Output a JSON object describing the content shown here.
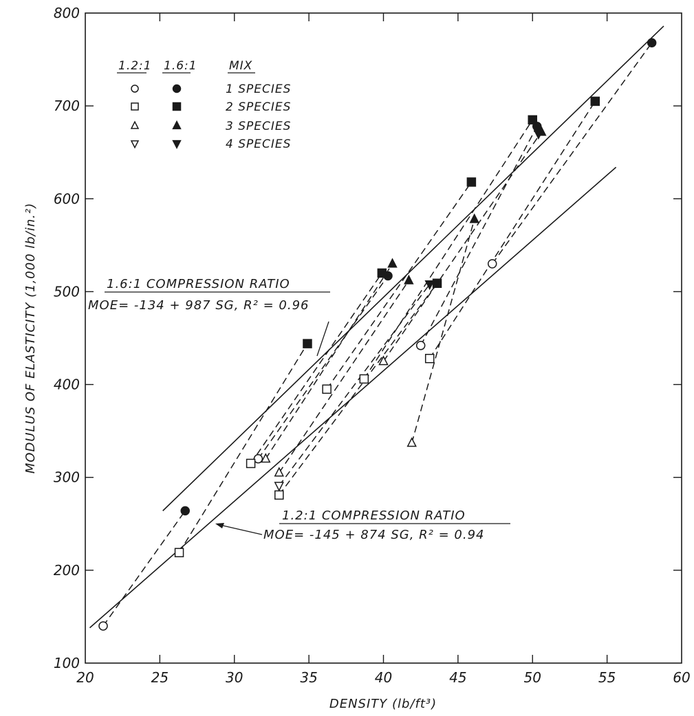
{
  "chart_data": {
    "type": "scatter",
    "xlabel": "DENSITY (lb/ft³)",
    "ylabel": "MODULUS OF ELASTICITY (1,000 lb/in.²)",
    "xlim": [
      20,
      60
    ],
    "ylim": [
      100,
      800
    ],
    "x_ticks": [
      "20",
      "25",
      "30",
      "35",
      "40",
      "45",
      "50",
      "55",
      "60"
    ],
    "y_ticks": [
      "100",
      "200",
      "300",
      "400",
      "500",
      "600",
      "700",
      "800"
    ],
    "grid": false,
    "legend": {
      "position": "top-left",
      "col_12": "1.2:1",
      "col_16": "1.6:1",
      "col_mix": "MIX",
      "rows": [
        {
          "label": "1 SPECIES",
          "marker": "circle"
        },
        {
          "label": "2 SPECIES",
          "marker": "square"
        },
        {
          "label": "3 SPECIES",
          "marker": "triangle-up"
        },
        {
          "label": "4 SPECIES",
          "marker": "triangle-down"
        }
      ]
    },
    "series": [
      {
        "name": "1.2:1 1 SPECIES",
        "ratio": "1.2:1",
        "marker": "circle",
        "filled": false,
        "x": [
          21.2,
          31.6,
          42.5,
          47.3
        ],
        "y": [
          140,
          320,
          442,
          530
        ]
      },
      {
        "name": "1.6:1 1 SPECIES",
        "ratio": "1.6:1",
        "marker": "circle",
        "filled": true,
        "x": [
          26.7,
          40.3,
          50.3,
          58.0
        ],
        "y": [
          264,
          517,
          678,
          768
        ]
      },
      {
        "name": "1.2:1 2 SPECIES",
        "ratio": "1.2:1",
        "marker": "square",
        "filled": false,
        "x": [
          26.3,
          31.1,
          33.0,
          36.2,
          38.7,
          43.1
        ],
        "y": [
          219,
          315,
          281,
          395,
          406,
          428
        ]
      },
      {
        "name": "1.6:1 2 SPECIES",
        "ratio": "1.6:1",
        "marker": "square",
        "filled": true,
        "x": [
          34.9,
          39.9,
          43.6,
          45.9,
          50.0,
          54.2
        ],
        "y": [
          444,
          520,
          509,
          618,
          685,
          705
        ]
      },
      {
        "name": "1.2:1 3 SPECIES",
        "ratio": "1.2:1",
        "marker": "triangle-up",
        "filled": false,
        "x": [
          32.1,
          33.0,
          40.0,
          41.9
        ],
        "y": [
          320,
          305,
          425,
          337
        ]
      },
      {
        "name": "1.6:1 3 SPECIES",
        "ratio": "1.6:1",
        "marker": "triangle-up",
        "filled": true,
        "x": [
          40.6,
          41.7,
          46.1,
          50.6
        ],
        "y": [
          530,
          512,
          578,
          672
        ]
      },
      {
        "name": "1.2:1 4 SPECIES",
        "ratio": "1.2:1",
        "marker": "triangle-down",
        "filled": false,
        "x": [
          33.0
        ],
        "y": [
          291
        ]
      },
      {
        "name": "1.6:1 4 SPECIES",
        "ratio": "1.6:1",
        "marker": "triangle-down",
        "filled": true,
        "x": [
          43.1,
          50.4
        ],
        "y": [
          508,
          670
        ]
      }
    ],
    "pairs": [
      [
        [
          21.2,
          140
        ],
        [
          26.7,
          264
        ]
      ],
      [
        [
          31.6,
          320
        ],
        [
          40.3,
          517
        ]
      ],
      [
        [
          42.5,
          442
        ],
        [
          50.3,
          678
        ]
      ],
      [
        [
          47.3,
          530
        ],
        [
          58.0,
          768
        ]
      ],
      [
        [
          26.3,
          219
        ],
        [
          34.9,
          444
        ]
      ],
      [
        [
          31.1,
          315
        ],
        [
          39.9,
          520
        ]
      ],
      [
        [
          33.0,
          281
        ],
        [
          43.6,
          509
        ]
      ],
      [
        [
          36.2,
          395
        ],
        [
          45.9,
          618
        ]
      ],
      [
        [
          38.7,
          406
        ],
        [
          50.0,
          685
        ]
      ],
      [
        [
          43.1,
          428
        ],
        [
          54.2,
          705
        ]
      ],
      [
        [
          32.1,
          320
        ],
        [
          40.6,
          530
        ]
      ],
      [
        [
          33.0,
          305
        ],
        [
          41.7,
          512
        ]
      ],
      [
        [
          40.0,
          425
        ],
        [
          50.6,
          672
        ]
      ],
      [
        [
          41.9,
          337
        ],
        [
          46.1,
          578
        ]
      ],
      [
        [
          33.0,
          291
        ],
        [
          43.1,
          508
        ]
      ]
    ],
    "regression_lines": [
      {
        "label": "1.6:1 COMPRESSION RATIO",
        "equation": "MOE= -134 + 987 SG,  R² = 0.96",
        "from": [
          25.2,
          264
        ],
        "to": [
          58.8,
          786
        ]
      },
      {
        "label": "1.2:1 COMPRESSION RATIO",
        "equation": "MOE= -145 + 874 SG,  R² = 0.94",
        "from": [
          20.3,
          138
        ],
        "to": [
          55.6,
          634
        ]
      }
    ]
  }
}
